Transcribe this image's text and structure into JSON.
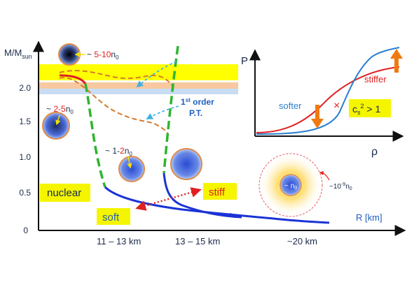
{
  "main_axes": {
    "y_label_main": "M/M",
    "y_label_sub": "sun",
    "x_label": "R [km]",
    "y_ticks": [
      "0",
      "0.5",
      "1.0",
      "1.5",
      "2.0"
    ],
    "x_ranges": [
      "11 – 13 km",
      "13 – 15 km",
      "~20 km"
    ]
  },
  "density_labels": {
    "d1_prefix": "~ ",
    "d1_value": "5-10",
    "d1_unit": "n",
    "d2_prefix": "~ ",
    "d2_value": "2-5",
    "d2_unit": "n",
    "d3_prefix": "~ 1-",
    "d3_value": "2",
    "d3_unit": "n",
    "d4": "~ n",
    "d5_prefix": "~10",
    "d5_exp": "-9",
    "d5_unit": "n",
    "subscript_zero": "0"
  },
  "pt_label": {
    "line1_sup_base": "1",
    "line1_sup": "st",
    "line1_rest": " order",
    "line2": "P.T."
  },
  "boxes": {
    "nuclear": "nuclear",
    "soft": "soft",
    "stiff": "stiff"
  },
  "inset": {
    "y_label": "P",
    "x_label": "ρ",
    "softer": "softer",
    "stiffer": "stiffer",
    "cs_base": "c",
    "cs_sub": "s",
    "cs_sup": "2",
    "cs_rest": " > 1"
  },
  "colors": {
    "blue_curve": "#1a33d6",
    "green_dash": "#2db52d",
    "red_curve": "#e02020",
    "orange_dash": "#d77a2a",
    "yellow_band": "#ffff00",
    "label_box": "#f5f500"
  }
}
